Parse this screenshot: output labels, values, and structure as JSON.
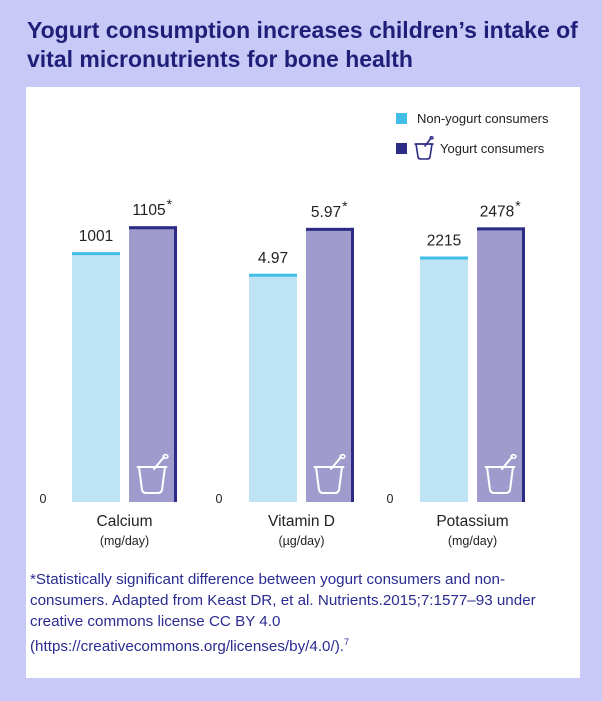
{
  "title": "Yogurt consumption increases children’s intake of vital micronutrients for bone health",
  "colors": {
    "background": "#c9c9f7",
    "title": "#1f1f7a",
    "non_yogurt_fill": "#bde3f5",
    "non_yogurt_border": "#41bde8",
    "yogurt_fill": "#9f9ccd",
    "yogurt_border": "#2c2c86",
    "footnote": "#2b2b92"
  },
  "legend": {
    "non_yogurt": "Non-yogurt consumers",
    "yogurt": "Yogurt consumers",
    "yogurt_icon": "yogurt-cup-icon"
  },
  "chart_data": {
    "type": "bar",
    "series": [
      {
        "name": "Non-yogurt consumers",
        "labels": [
          "1001",
          "4.97",
          "2215"
        ]
      },
      {
        "name": "Yogurt consumers",
        "labels": [
          "1105",
          "5.97",
          "2478"
        ],
        "significant": [
          true,
          true,
          true
        ]
      }
    ],
    "groups": [
      {
        "category": "Calcium",
        "unit": "(mg/day)",
        "values": [
          1001,
          1105
        ],
        "ylim": [
          0,
          1150
        ]
      },
      {
        "category": "Vitamin D",
        "unit": "(µg/day)",
        "values": [
          4.97,
          5.97
        ],
        "ylim": [
          0,
          6.25
        ]
      },
      {
        "category": "Potassium",
        "unit": "(mg/day)",
        "values": [
          2215,
          2478
        ],
        "ylim": [
          0,
          2590
        ]
      }
    ],
    "zero_label": "0",
    "significance_marker": "*"
  },
  "footnote": {
    "text": "*Statistically significant difference between yogurt consumers and non-consumers. Adapted from Keast DR, et al. Nutrients.2015;7:1577–93 under creative commons license CC BY 4.0 (https://creativecommons.org/licenses/by/4.0/).",
    "superscript": "7"
  }
}
